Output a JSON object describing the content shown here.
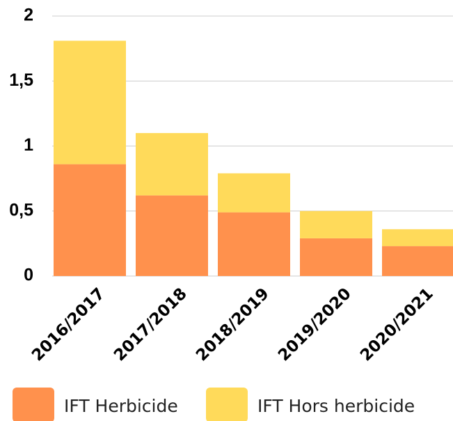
{
  "chart_data": {
    "type": "stacked_bar",
    "categories": [
      "2016/2017",
      "2017/2018",
      "2018/2019",
      "2019/2020",
      "2020/2021"
    ],
    "series": [
      {
        "name": "IFT Herbicide",
        "color": "#ff914d",
        "values": [
          0.86,
          0.62,
          0.49,
          0.29,
          0.23
        ]
      },
      {
        "name": "IFT Hors herbicide",
        "color": "#ffda5a",
        "values": [
          0.95,
          0.48,
          0.3,
          0.21,
          0.13
        ]
      }
    ],
    "ylim": [
      0,
      2
    ],
    "yticks": [
      0,
      {
        "value": 0.5,
        "label": "0,5"
      },
      1,
      {
        "value": 1.5,
        "label": "1,5"
      },
      2
    ],
    "grid": true,
    "legend": "bottom"
  }
}
